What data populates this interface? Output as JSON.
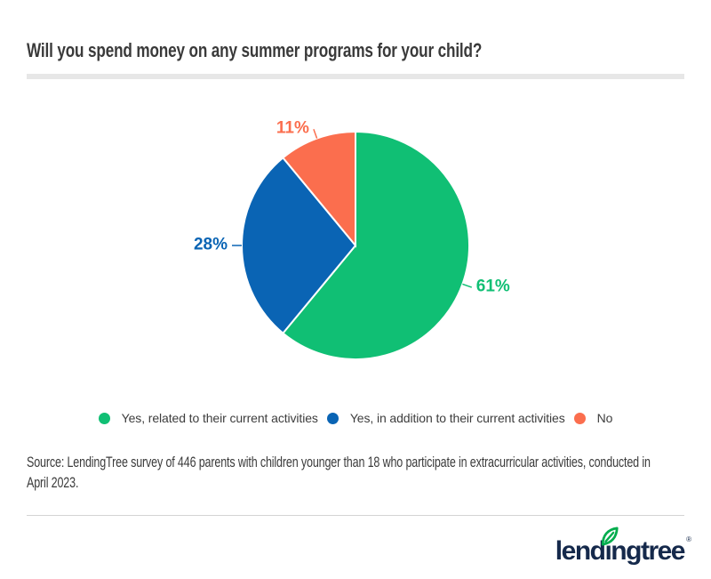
{
  "header": {
    "title": "Will you spend money on any summer programs for your child?"
  },
  "chart_data": {
    "type": "pie",
    "title": "Will you spend money on any summer programs for your child?",
    "start_angle_deg": 0,
    "direction": "clockwise",
    "legend_position": "bottom",
    "value_suffix": "%",
    "slices": [
      {
        "label": "Yes, related to their current activities",
        "value": 61,
        "pct_label": "61%",
        "color": "#10bf74"
      },
      {
        "label": "Yes, in addition to their current activities",
        "value": 28,
        "pct_label": "28%",
        "color": "#0a64b4"
      },
      {
        "label": "No",
        "value": 11,
        "pct_label": "11%",
        "color": "#fb6e4e"
      }
    ]
  },
  "source": {
    "line1": "Source: LendingTree survey of 446 parents with children younger than 18 who participate in extracurricular activities, conducted in",
    "line2": "April 2023."
  },
  "footer": {
    "logo_text": "lendingtree",
    "registered_mark": "®",
    "logo_navy": "#15294b",
    "leaf_green": "#00ad4d"
  }
}
